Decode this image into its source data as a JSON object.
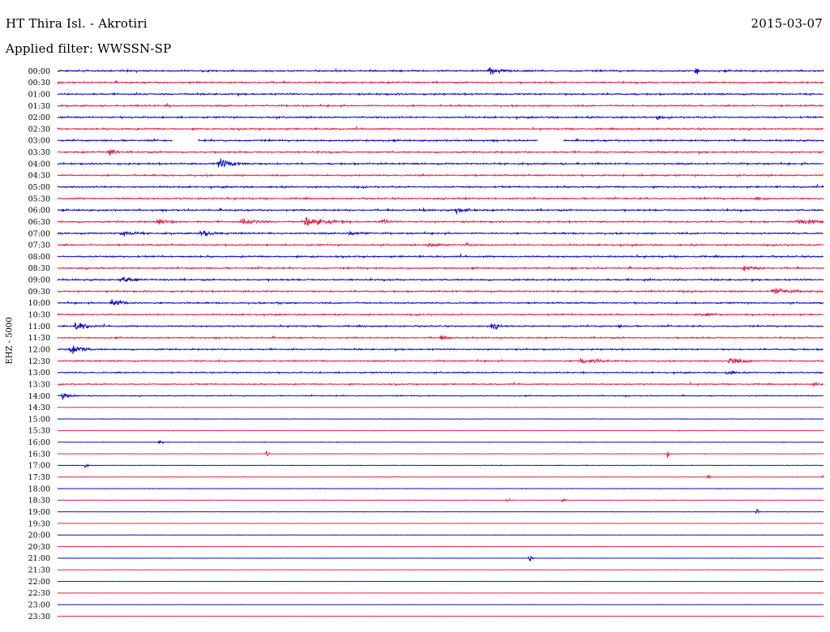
{
  "header": {
    "station": "HT Thira Isl. - Akrotiri",
    "date": "2015-03-07",
    "filter": "Applied filter: WWSSN-SP"
  },
  "channel_label": "EHZ - 5000",
  "colors": {
    "trace_a": "#1111cc",
    "trace_b": "#e8254f",
    "text": "#000000",
    "background": "#ffffff"
  },
  "chart_data": {
    "type": "helicorder",
    "station": "HT Thira Isl. - Akrotiri",
    "date": "2015-03-07",
    "channel": "EHZ - 5000",
    "filter": "WWSSN-SP",
    "row_interval_minutes": 30,
    "row_color_cycle": [
      "blue",
      "red"
    ],
    "row_times": [
      "00:00",
      "00:30",
      "01:00",
      "01:30",
      "02:00",
      "02:30",
      "03:00",
      "03:30",
      "04:00",
      "04:30",
      "05:00",
      "05:30",
      "06:00",
      "06:30",
      "07:00",
      "07:30",
      "08:00",
      "08:30",
      "09:00",
      "09:30",
      "10:00",
      "10:30",
      "11:00",
      "11:30",
      "12:00",
      "12:30",
      "13:00",
      "13:30",
      "14:00",
      "14:30",
      "15:00",
      "15:30",
      "16:00",
      "16:30",
      "17:00",
      "17:30",
      "18:00",
      "18:30",
      "19:00",
      "19:30",
      "20:00",
      "20:30",
      "21:00",
      "21:30",
      "22:00",
      "22:30",
      "23:00",
      "23:30"
    ],
    "noise_level": [
      1.0,
      1.0,
      1.0,
      1.0,
      1.0,
      1.0,
      1.0,
      1.0,
      1.0,
      1.0,
      1.0,
      1.0,
      1.0,
      1.0,
      1.0,
      1.0,
      1.0,
      1.0,
      1.0,
      1.0,
      0.9,
      0.9,
      0.9,
      0.9,
      0.9,
      0.9,
      0.8,
      0.8,
      0.6,
      0.3,
      0.3,
      0.3,
      0.3,
      0.3,
      0.3,
      0.3,
      0.3,
      0.3,
      0.2,
      0.2,
      0.2,
      0.2,
      0.2,
      0.2,
      0.15,
      0.15,
      0.15,
      0.15
    ],
    "events": [
      {
        "row": 0,
        "pos_min": 16.9,
        "amp": 9,
        "dur_min": 0.8
      },
      {
        "row": 0,
        "pos_min": 25.0,
        "amp": 12,
        "dur_min": 0.1
      },
      {
        "row": 3,
        "pos_min": 4.3,
        "amp": 4,
        "dur_min": 0.4
      },
      {
        "row": 4,
        "pos_min": 23.5,
        "amp": 4,
        "dur_min": 0.3
      },
      {
        "row": 7,
        "pos_min": 2.0,
        "amp": 7,
        "dur_min": 0.5
      },
      {
        "row": 8,
        "pos_min": 6.3,
        "amp": 9,
        "dur_min": 1.0
      },
      {
        "row": 8,
        "pos_min": 20.3,
        "amp": 3,
        "dur_min": 0.3
      },
      {
        "row": 9,
        "pos_min": 23.3,
        "amp": 3,
        "dur_min": 0.3
      },
      {
        "row": 11,
        "pos_min": 15.9,
        "amp": 3,
        "dur_min": 0.4
      },
      {
        "row": 11,
        "pos_min": 27.3,
        "amp": 4,
        "dur_min": 0.8
      },
      {
        "row": 12,
        "pos_min": 14.3,
        "amp": 4,
        "dur_min": 0.4
      },
      {
        "row": 12,
        "pos_min": 15.6,
        "amp": 6,
        "dur_min": 0.8
      },
      {
        "row": 13,
        "pos_min": 3.9,
        "amp": 5,
        "dur_min": 1.0
      },
      {
        "row": 13,
        "pos_min": 7.2,
        "amp": 6,
        "dur_min": 1.2
      },
      {
        "row": 13,
        "pos_min": 9.7,
        "amp": 9,
        "dur_min": 1.3
      },
      {
        "row": 13,
        "pos_min": 12.7,
        "amp": 5,
        "dur_min": 0.6
      },
      {
        "row": 13,
        "pos_min": 29.0,
        "amp": 6,
        "dur_min": 1.5
      },
      {
        "row": 14,
        "pos_min": 2.5,
        "amp": 6,
        "dur_min": 1.0
      },
      {
        "row": 14,
        "pos_min": 5.6,
        "amp": 6,
        "dur_min": 1.2
      },
      {
        "row": 14,
        "pos_min": 11.4,
        "amp": 5,
        "dur_min": 1.0
      },
      {
        "row": 15,
        "pos_min": 14.5,
        "amp": 4,
        "dur_min": 1.3
      },
      {
        "row": 15,
        "pos_min": 16.0,
        "amp": 3,
        "dur_min": 0.6
      },
      {
        "row": 16,
        "pos_min": 10.0,
        "amp": 3,
        "dur_min": 0.4
      },
      {
        "row": 17,
        "pos_min": 26.9,
        "amp": 5,
        "dur_min": 1.0
      },
      {
        "row": 18,
        "pos_min": 2.5,
        "amp": 7,
        "dur_min": 0.8
      },
      {
        "row": 18,
        "pos_min": 23.0,
        "amp": 3,
        "dur_min": 0.3
      },
      {
        "row": 19,
        "pos_min": 24.5,
        "amp": 3,
        "dur_min": 1.2
      },
      {
        "row": 19,
        "pos_min": 28.0,
        "amp": 6,
        "dur_min": 1.5
      },
      {
        "row": 20,
        "pos_min": 2.1,
        "amp": 8,
        "dur_min": 0.7
      },
      {
        "row": 20,
        "pos_min": 8.6,
        "amp": 3,
        "dur_min": 0.5
      },
      {
        "row": 21,
        "pos_min": 25.0,
        "amp": 3,
        "dur_min": 2.0
      },
      {
        "row": 22,
        "pos_min": 0.7,
        "amp": 8,
        "dur_min": 0.7
      },
      {
        "row": 22,
        "pos_min": 17.0,
        "amp": 6,
        "dur_min": 0.6
      },
      {
        "row": 22,
        "pos_min": 22.0,
        "amp": 3,
        "dur_min": 0.5
      },
      {
        "row": 23,
        "pos_min": 15.0,
        "amp": 4,
        "dur_min": 0.8
      },
      {
        "row": 24,
        "pos_min": 0.5,
        "amp": 8,
        "dur_min": 0.8
      },
      {
        "row": 25,
        "pos_min": 20.5,
        "amp": 6,
        "dur_min": 1.2
      },
      {
        "row": 25,
        "pos_min": 26.3,
        "amp": 7,
        "dur_min": 1.0
      },
      {
        "row": 26,
        "pos_min": 20.6,
        "amp": 3,
        "dur_min": 0.3
      },
      {
        "row": 26,
        "pos_min": 26.2,
        "amp": 4,
        "dur_min": 0.7
      },
      {
        "row": 27,
        "pos_min": 29.6,
        "amp": 4,
        "dur_min": 0.5
      },
      {
        "row": 28,
        "pos_min": 0.2,
        "amp": 6,
        "dur_min": 0.5
      },
      {
        "row": 32,
        "pos_min": 4.0,
        "amp": 7,
        "dur_min": 0.1
      },
      {
        "row": 33,
        "pos_min": 8.2,
        "amp": 8,
        "dur_min": 0.1
      },
      {
        "row": 33,
        "pos_min": 23.9,
        "amp": 8,
        "dur_min": 0.1
      },
      {
        "row": 34,
        "pos_min": 1.1,
        "amp": 8,
        "dur_min": 0.1
      },
      {
        "row": 35,
        "pos_min": 25.5,
        "amp": 8,
        "dur_min": 0.1
      },
      {
        "row": 35,
        "pos_min": 30.0,
        "amp": 5,
        "dur_min": 0.3
      },
      {
        "row": 37,
        "pos_min": 17.6,
        "amp": 8,
        "dur_min": 0.1
      },
      {
        "row": 37,
        "pos_min": 19.8,
        "amp": 8,
        "dur_min": 0.1
      },
      {
        "row": 38,
        "pos_min": 27.4,
        "amp": 8,
        "dur_min": 0.1
      },
      {
        "row": 42,
        "pos_min": 18.5,
        "amp": 8,
        "dur_min": 0.1
      }
    ],
    "data_gaps": [
      {
        "row": 6,
        "start_min": 4.5,
        "end_min": 5.5
      },
      {
        "row": 6,
        "start_min": 18.8,
        "end_min": 19.8
      }
    ]
  }
}
